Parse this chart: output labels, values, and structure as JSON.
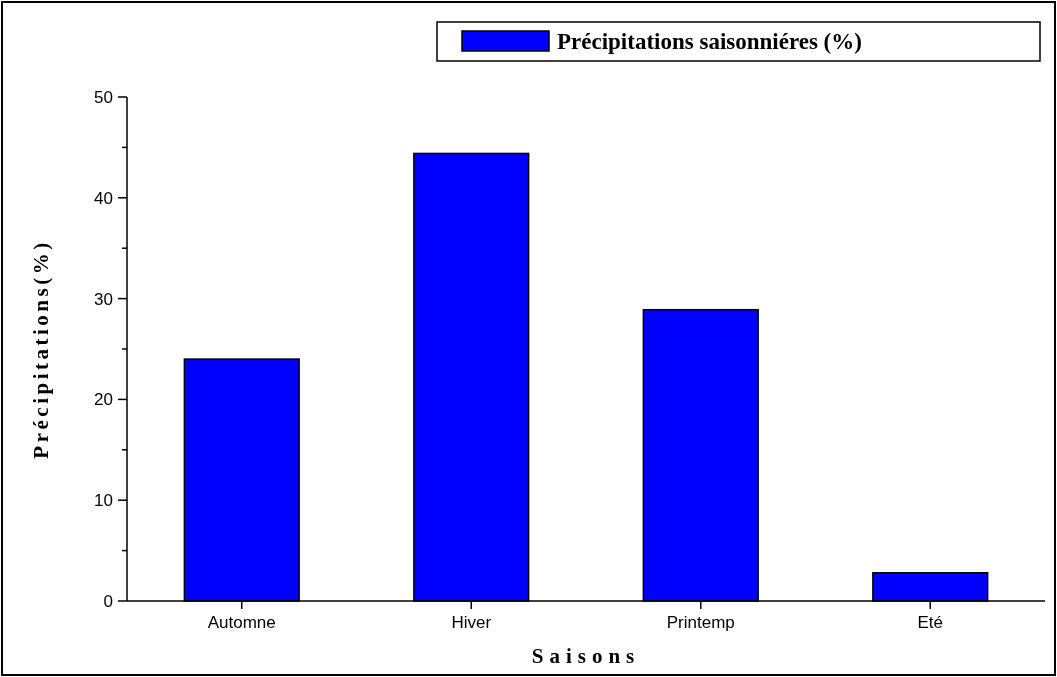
{
  "chart_data": {
    "type": "bar",
    "xlabel": "Saisons",
    "ylabel": "Précipitations(%)",
    "categories": [
      "Automne",
      "Hiver",
      "Printemp",
      "Eté"
    ],
    "series": [
      {
        "name": "Précipitations saisonniéres (%)",
        "color": "#0000ff",
        "values": [
          24,
          44.4,
          28.9,
          2.8
        ]
      }
    ],
    "ylim": [
      0,
      50
    ],
    "yticks": [
      0,
      {
        "value": 5,
        "label": null
      },
      10,
      {
        "value": 15,
        "label": null
      },
      20,
      {
        "value": 25,
        "label": null
      },
      30,
      {
        "value": 35,
        "label": null
      },
      40,
      {
        "value": 45,
        "label": null
      },
      50
    ],
    "grid": false,
    "legend": "top right"
  }
}
